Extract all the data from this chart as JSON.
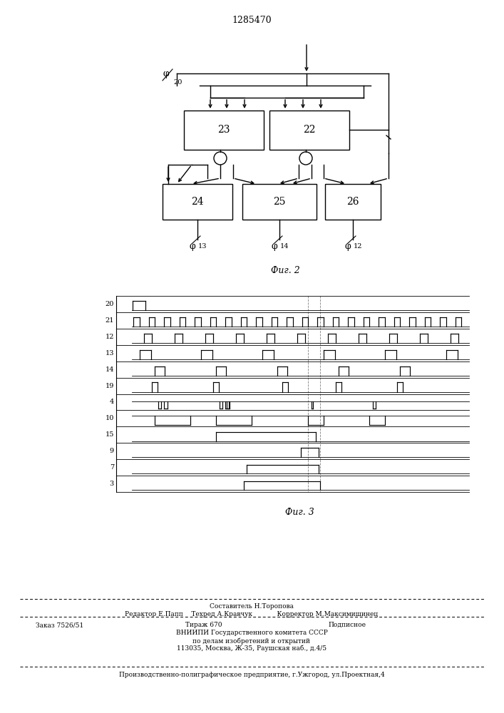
{
  "title": "1285470",
  "fig2_label": "Фиг. 2",
  "fig3_label": "Фиг. 3",
  "signal_rows": [
    "20",
    "21",
    "12",
    "13",
    "14",
    "19",
    "4",
    "10",
    "15",
    "9",
    "7",
    "3"
  ],
  "footer": {
    "line1": "Составитель Н.Торопова",
    "line2": "Редактор Е.Папп    Техред А.Кравчук            Корректор М.Максимишинец",
    "line3a": "Заказ 7526/51",
    "line3b": "Тираж 670",
    "line3c": "Подписное",
    "line4": "ВНИИПИ Государственного комитета СССР",
    "line5": "по делам изобретений и открытий",
    "line6": "113035, Москва, Ж-35, Раушская наб., д.4/5",
    "line7": "Производственно-полиграфическое предприятие, г.Ужгород, ул.Проектная,4"
  }
}
